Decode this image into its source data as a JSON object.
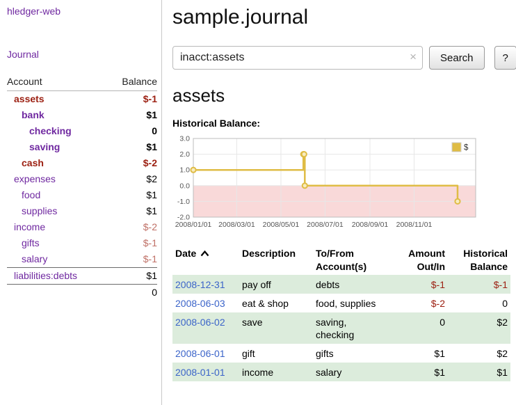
{
  "app": {
    "brand": "hledger-web",
    "nav_journal": "Journal"
  },
  "sidebar": {
    "header": {
      "account": "Account",
      "balance": "Balance"
    },
    "accounts": [
      {
        "name": "assets",
        "level": 0,
        "bold": true,
        "name_neg": true,
        "balance": "$-1",
        "bal_bold": true,
        "bal_neg": true
      },
      {
        "name": "bank",
        "level": 1,
        "bold": true,
        "name_neg": false,
        "balance": "$1",
        "bal_bold": true,
        "bal_neg": false
      },
      {
        "name": "checking",
        "level": 2,
        "bold": true,
        "name_neg": false,
        "balance": "0",
        "bal_bold": true,
        "bal_neg": false
      },
      {
        "name": "saving",
        "level": 2,
        "bold": true,
        "name_neg": false,
        "balance": "$1",
        "bal_bold": true,
        "bal_neg": false
      },
      {
        "name": "cash",
        "level": 1,
        "bold": true,
        "name_neg": true,
        "balance": "$-2",
        "bal_bold": true,
        "bal_neg": true
      },
      {
        "name": "expenses",
        "level": 0,
        "bold": false,
        "name_neg": false,
        "balance": "$2",
        "bal_bold": false,
        "bal_neg": false
      },
      {
        "name": "food",
        "level": 1,
        "bold": false,
        "name_neg": false,
        "balance": "$1",
        "bal_bold": false,
        "bal_neg": false
      },
      {
        "name": "supplies",
        "level": 1,
        "bold": false,
        "name_neg": false,
        "balance": "$1",
        "bal_bold": false,
        "bal_neg": false
      },
      {
        "name": "income",
        "level": 0,
        "bold": false,
        "name_neg": false,
        "balance": "$-2",
        "bal_bold": false,
        "bal_neg": true
      },
      {
        "name": "gifts",
        "level": 1,
        "bold": false,
        "name_neg": false,
        "balance": "$-1",
        "bal_bold": false,
        "bal_neg": true
      },
      {
        "name": "salary",
        "level": 1,
        "bold": false,
        "name_neg": false,
        "balance": "$-1",
        "bal_bold": false,
        "bal_neg": true
      },
      {
        "name": "liabilities:debts",
        "level": 0,
        "bold": false,
        "name_neg": false,
        "balance": "$1",
        "bal_bold": false,
        "bal_neg": false,
        "rule_top": true
      }
    ],
    "total": "0"
  },
  "main": {
    "title": "sample.journal",
    "search": {
      "query": "inacct:assets",
      "clear": "×",
      "button": "Search",
      "help": "?"
    },
    "heading": "assets",
    "chart_label": "Historical Balance:"
  },
  "chart_data": {
    "type": "line",
    "step": true,
    "title": "Historical Balance",
    "series": [
      {
        "name": "$",
        "points": [
          {
            "date": "2008/01/01",
            "day": 0,
            "value": 1
          },
          {
            "date": "2008/06/01",
            "day": 152,
            "value": 2
          },
          {
            "date": "2008/06/02",
            "day": 153,
            "value": 2
          },
          {
            "date": "2008/06/03",
            "day": 154,
            "value": 0
          },
          {
            "date": "2008/12/31",
            "day": 365,
            "value": -1
          }
        ]
      }
    ],
    "x_ticks": [
      {
        "label": "2008/01/01",
        "day": 0
      },
      {
        "label": "2008/03/01",
        "day": 60
      },
      {
        "label": "2008/05/01",
        "day": 121
      },
      {
        "label": "2008/07/01",
        "day": 182
      },
      {
        "label": "2008/09/01",
        "day": 244
      },
      {
        "label": "2008/11/01",
        "day": 305
      }
    ],
    "y_ticks": [
      3.0,
      2.0,
      1.0,
      0.0,
      -1.0,
      -2.0
    ],
    "xlim_days": [
      0,
      390
    ],
    "ylim": [
      -2,
      3
    ],
    "grid": true,
    "negative_region": {
      "from": -2,
      "to": 0,
      "color": "#f9d9d9"
    },
    "series_color": "#dfbc45",
    "marker_fill": "#f8ecc0",
    "legend": {
      "label": "$",
      "position": "top-right"
    }
  },
  "table": {
    "headers": [
      "Date",
      "Description",
      "To/From Account(s)",
      "Amount Out/In",
      "Historical Balance"
    ],
    "rows": [
      {
        "date": "2008-12-31",
        "description": "pay off",
        "accounts": "debts",
        "amount": "$-1",
        "amount_neg": true,
        "balance": "$-1",
        "balance_neg": true
      },
      {
        "date": "2008-06-03",
        "description": "eat & shop",
        "accounts": "food, supplies",
        "amount": "$-2",
        "amount_neg": true,
        "balance": "0",
        "balance_neg": false
      },
      {
        "date": "2008-06-02",
        "description": "save",
        "accounts": "saving, checking",
        "amount": "0",
        "amount_neg": false,
        "balance": "$2",
        "balance_neg": false
      },
      {
        "date": "2008-06-01",
        "description": "gift",
        "accounts": "gifts",
        "amount": "$1",
        "amount_neg": false,
        "balance": "$2",
        "balance_neg": false
      },
      {
        "date": "2008-01-01",
        "description": "income",
        "accounts": "salary",
        "amount": "$1",
        "amount_neg": false,
        "balance": "$1",
        "balance_neg": false
      }
    ]
  }
}
